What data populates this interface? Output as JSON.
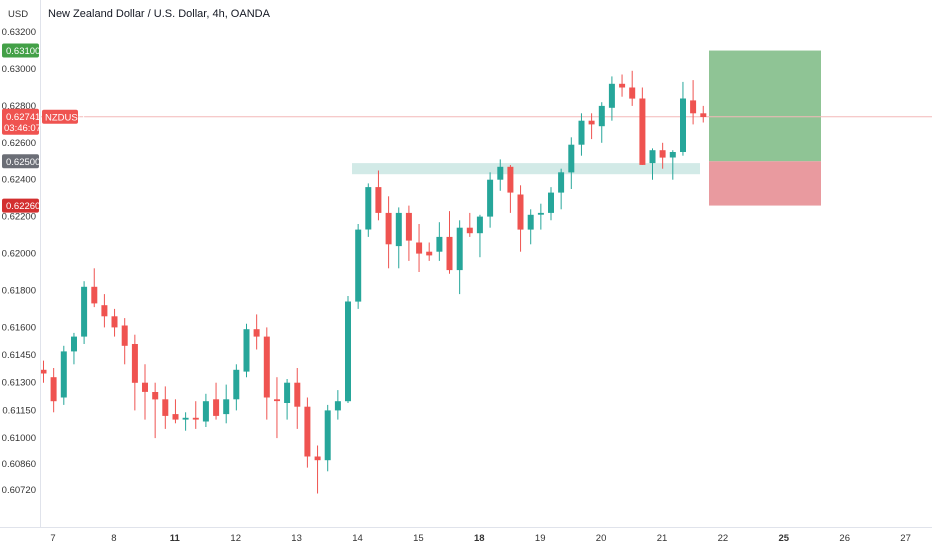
{
  "header": {
    "currency": "USD",
    "title": "New Zealand Dollar / U.S. Dollar, 4h, OANDA"
  },
  "colors": {
    "up": "#26a69a",
    "down": "#ef5350",
    "target_zone": "#8fc495",
    "stop_zone": "#e99a9f",
    "support_zone": "#cde8e4",
    "price_line": "#f4b8b8",
    "target_label": "#43a047",
    "stop_label": "#d32f2f",
    "entry_label": "#6b6e76"
  },
  "price_labels": {
    "target": "0.63100",
    "entry": "0.62500",
    "stop": "0.62260",
    "current_price": "0.62741",
    "countdown": "03:46:07",
    "symbol": "NZDUSD"
  },
  "chart_data": {
    "type": "candlestick",
    "title": "New Zealand Dollar / U.S. Dollar, 4h, OANDA",
    "ylim": [
      0.6063,
      0.6325
    ],
    "y_ticks": [
      "0.63200",
      "0.63000",
      "0.62800",
      "0.62600",
      "0.62400",
      "0.62200",
      "0.62000",
      "0.61800",
      "0.61600",
      "0.61450",
      "0.61300",
      "0.61150",
      "0.61000",
      "0.60860",
      "0.60720"
    ],
    "x_ticks": [
      {
        "label": "7",
        "bold": false
      },
      {
        "label": "8",
        "bold": false
      },
      {
        "label": "11",
        "bold": true
      },
      {
        "label": "12",
        "bold": false
      },
      {
        "label": "13",
        "bold": false
      },
      {
        "label": "14",
        "bold": false
      },
      {
        "label": "15",
        "bold": false
      },
      {
        "label": "18",
        "bold": true
      },
      {
        "label": "19",
        "bold": false
      },
      {
        "label": "20",
        "bold": false
      },
      {
        "label": "21",
        "bold": false
      },
      {
        "label": "22",
        "bold": false
      },
      {
        "label": "25",
        "bold": true
      },
      {
        "label": "26",
        "bold": false
      },
      {
        "label": "27",
        "bold": false
      }
    ],
    "candles": [
      [
        0.6137,
        0.6142,
        0.613,
        0.6135
      ],
      [
        0.6133,
        0.6138,
        0.6114,
        0.612
      ],
      [
        0.6122,
        0.615,
        0.6118,
        0.6147
      ],
      [
        0.6147,
        0.6157,
        0.614,
        0.6155
      ],
      [
        0.6155,
        0.6185,
        0.6151,
        0.6182
      ],
      [
        0.6182,
        0.6192,
        0.6171,
        0.6173
      ],
      [
        0.6172,
        0.6178,
        0.616,
        0.6166
      ],
      [
        0.6166,
        0.617,
        0.6155,
        0.616
      ],
      [
        0.6161,
        0.6165,
        0.614,
        0.615
      ],
      [
        0.6151,
        0.6156,
        0.6115,
        0.613
      ],
      [
        0.613,
        0.614,
        0.611,
        0.6125
      ],
      [
        0.6125,
        0.613,
        0.61,
        0.6121
      ],
      [
        0.6121,
        0.6128,
        0.6105,
        0.6112
      ],
      [
        0.6113,
        0.6121,
        0.6108,
        0.611
      ],
      [
        0.611,
        0.6114,
        0.6104,
        0.6111
      ],
      [
        0.6111,
        0.612,
        0.6105,
        0.611
      ],
      [
        0.6109,
        0.6124,
        0.6106,
        0.612
      ],
      [
        0.6121,
        0.613,
        0.611,
        0.6112
      ],
      [
        0.6113,
        0.6129,
        0.6108,
        0.6121
      ],
      [
        0.6121,
        0.614,
        0.6115,
        0.6137
      ],
      [
        0.6136,
        0.6162,
        0.6133,
        0.6159
      ],
      [
        0.6159,
        0.6167,
        0.6148,
        0.6155
      ],
      [
        0.6155,
        0.616,
        0.611,
        0.6122
      ],
      [
        0.6121,
        0.6133,
        0.61,
        0.612
      ],
      [
        0.6119,
        0.6132,
        0.611,
        0.613
      ],
      [
        0.613,
        0.6138,
        0.6105,
        0.6117
      ],
      [
        0.6117,
        0.6122,
        0.6084,
        0.609
      ],
      [
        0.609,
        0.6096,
        0.607,
        0.6088
      ],
      [
        0.6088,
        0.6118,
        0.6082,
        0.6115
      ],
      [
        0.6115,
        0.6126,
        0.611,
        0.612
      ],
      [
        0.612,
        0.6177,
        0.6119,
        0.6174
      ],
      [
        0.6174,
        0.6216,
        0.617,
        0.6213
      ],
      [
        0.6213,
        0.6238,
        0.6209,
        0.6236
      ],
      [
        0.6236,
        0.6245,
        0.6218,
        0.6222
      ],
      [
        0.6222,
        0.6231,
        0.6192,
        0.6205
      ],
      [
        0.6204,
        0.6225,
        0.6192,
        0.6222
      ],
      [
        0.6222,
        0.6226,
        0.6196,
        0.6207
      ],
      [
        0.6206,
        0.6216,
        0.619,
        0.62
      ],
      [
        0.6201,
        0.6206,
        0.6196,
        0.6199
      ],
      [
        0.6201,
        0.6217,
        0.6196,
        0.6209
      ],
      [
        0.6209,
        0.6223,
        0.6189,
        0.6191
      ],
      [
        0.6191,
        0.6218,
        0.6178,
        0.6214
      ],
      [
        0.6214,
        0.6222,
        0.6209,
        0.6211
      ],
      [
        0.6211,
        0.6221,
        0.6198,
        0.622
      ],
      [
        0.622,
        0.6244,
        0.6214,
        0.624
      ],
      [
        0.624,
        0.6251,
        0.6234,
        0.6247
      ],
      [
        0.6247,
        0.6248,
        0.6222,
        0.6233
      ],
      [
        0.6232,
        0.6237,
        0.6201,
        0.6213
      ],
      [
        0.6213,
        0.6224,
        0.6205,
        0.6221
      ],
      [
        0.6221,
        0.6227,
        0.6213,
        0.6222
      ],
      [
        0.6222,
        0.6236,
        0.6218,
        0.6233
      ],
      [
        0.6233,
        0.6246,
        0.6224,
        0.6244
      ],
      [
        0.6244,
        0.6263,
        0.6235,
        0.6259
      ],
      [
        0.6259,
        0.6276,
        0.6253,
        0.6272
      ],
      [
        0.6272,
        0.6276,
        0.6262,
        0.627
      ],
      [
        0.6269,
        0.6282,
        0.626,
        0.628
      ],
      [
        0.6279,
        0.6296,
        0.6272,
        0.6292
      ],
      [
        0.6292,
        0.6297,
        0.6285,
        0.629
      ],
      [
        0.629,
        0.6299,
        0.628,
        0.6284
      ],
      [
        0.6284,
        0.629,
        0.6248,
        0.6248
      ],
      [
        0.6249,
        0.6257,
        0.624,
        0.6256
      ],
      [
        0.6256,
        0.626,
        0.6246,
        0.6252
      ],
      [
        0.6252,
        0.6256,
        0.624,
        0.6255
      ],
      [
        0.6255,
        0.6293,
        0.6253,
        0.6284
      ],
      [
        0.6283,
        0.6294,
        0.627,
        0.6276
      ],
      [
        0.6276,
        0.628,
        0.6271,
        0.6274
      ]
    ]
  }
}
